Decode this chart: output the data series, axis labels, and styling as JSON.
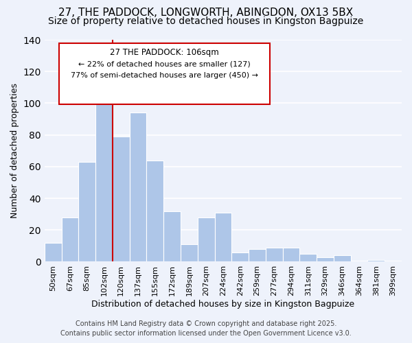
{
  "title": "27, THE PADDOCK, LONGWORTH, ABINGDON, OX13 5BX",
  "subtitle": "Size of property relative to detached houses in Kingston Bagpuize",
  "xlabel": "Distribution of detached houses by size in Kingston Bagpuize",
  "ylabel": "Number of detached properties",
  "bar_labels": [
    "50sqm",
    "67sqm",
    "85sqm",
    "102sqm",
    "120sqm",
    "137sqm",
    "155sqm",
    "172sqm",
    "189sqm",
    "207sqm",
    "224sqm",
    "242sqm",
    "259sqm",
    "277sqm",
    "294sqm",
    "311sqm",
    "329sqm",
    "346sqm",
    "364sqm",
    "381sqm",
    "399sqm"
  ],
  "bar_values": [
    12,
    28,
    63,
    112,
    79,
    94,
    64,
    32,
    11,
    28,
    31,
    6,
    8,
    9,
    9,
    5,
    3,
    4,
    0,
    1,
    0
  ],
  "bar_color": "#aec6e8",
  "vline_color": "#cc0000",
  "annotation_title": "27 THE PADDOCK: 106sqm",
  "annotation_line1": "← 22% of detached houses are smaller (127)",
  "annotation_line2": "77% of semi-detached houses are larger (450) →",
  "annotation_box_facecolor": "#ffffff",
  "annotation_box_edgecolor": "#cc0000",
  "ylim": [
    0,
    140
  ],
  "footnote1": "Contains HM Land Registry data © Crown copyright and database right 2025.",
  "footnote2": "Contains public sector information licensed under the Open Government Licence v3.0.",
  "background_color": "#eef2fb",
  "grid_color": "#ffffff",
  "title_fontsize": 11,
  "subtitle_fontsize": 10,
  "axis_label_fontsize": 9,
  "tick_fontsize": 8,
  "footnote_fontsize": 7
}
